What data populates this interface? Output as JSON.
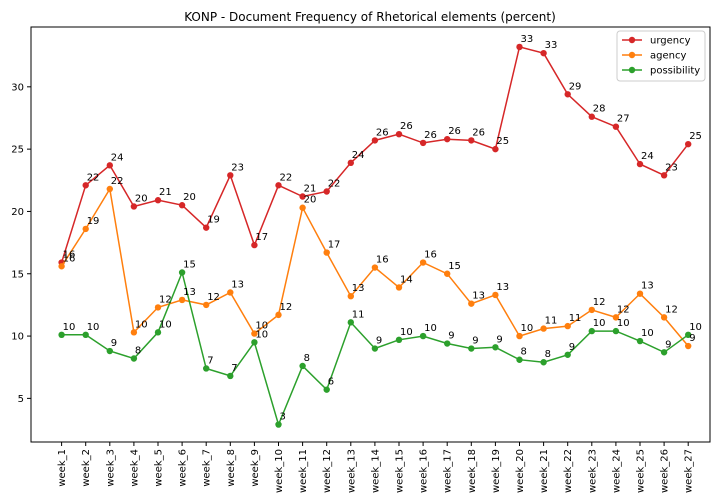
{
  "chart_data": {
    "type": "line",
    "title": "KONP - Document Frequency of Rhetorical elements (percent)",
    "xlabel": "",
    "ylabel": "",
    "categories": [
      "week_1",
      "week_2",
      "week_3",
      "week_4",
      "week_5",
      "week_6",
      "week_7",
      "week_8",
      "week_9",
      "week_10",
      "week_11",
      "week_12",
      "week_13",
      "week_14",
      "week_15",
      "week_16",
      "week_17",
      "week_18",
      "week_19",
      "week_20",
      "week_21",
      "week_22",
      "week_23",
      "week_24",
      "week_25",
      "week_26",
      "week_27"
    ],
    "ylim": [
      1.5,
      34.8
    ],
    "yticks": [
      5,
      10,
      15,
      20,
      25,
      30
    ],
    "grid": false,
    "legend_position": "top-right",
    "series": [
      {
        "name": "urgency",
        "color": "#d62728",
        "values": [
          15.9,
          22.1,
          23.7,
          20.4,
          20.9,
          20.5,
          18.7,
          22.9,
          17.3,
          22.1,
          21.2,
          21.6,
          23.9,
          25.7,
          26.2,
          25.5,
          25.8,
          25.7,
          25.0,
          33.2,
          32.7,
          29.4,
          27.6,
          26.8,
          23.8,
          22.9,
          25.4
        ],
        "labels": [
          "16",
          "22",
          "24",
          "20",
          "21",
          "20",
          "19",
          "23",
          "17",
          "22",
          "21",
          "22",
          "24",
          "26",
          "26",
          "26",
          "26",
          "26",
          "25",
          "33",
          "33",
          "29",
          "28",
          "27",
          "24",
          "23",
          "25"
        ]
      },
      {
        "name": "agency",
        "color": "#ff7f0e",
        "values": [
          15.6,
          18.6,
          21.8,
          10.3,
          12.3,
          12.9,
          12.5,
          13.5,
          10.2,
          11.7,
          20.3,
          16.7,
          13.2,
          15.5,
          13.9,
          15.9,
          15.0,
          12.6,
          13.3,
          10.0,
          10.6,
          10.8,
          12.1,
          11.5,
          13.4,
          11.5,
          9.2
        ],
        "labels": [
          "16",
          "19",
          "22",
          "10",
          "12",
          "13",
          "12",
          "13",
          "10",
          "12",
          "20",
          "17",
          "13",
          "16",
          "14",
          "16",
          "15",
          "13",
          "13",
          "10",
          "11",
          "11",
          "12",
          "12",
          "13",
          "12",
          "9"
        ]
      },
      {
        "name": "possibility",
        "color": "#2ca02c",
        "values": [
          10.1,
          10.1,
          8.8,
          8.2,
          10.3,
          15.1,
          7.4,
          6.8,
          9.5,
          2.9,
          7.6,
          5.7,
          11.1,
          9.0,
          9.7,
          10.0,
          9.4,
          9.0,
          9.1,
          8.1,
          7.9,
          8.5,
          10.4,
          10.4,
          9.6,
          8.7,
          10.1
        ],
        "labels": [
          "10",
          "10",
          "9",
          "8",
          "10",
          "15",
          "7",
          "7",
          "10",
          "3",
          "8",
          "6",
          "11",
          "9",
          "10",
          "10",
          "9",
          "9",
          "9",
          "8",
          "8",
          "9",
          "10",
          "10",
          "10",
          "9",
          "10"
        ]
      }
    ]
  }
}
